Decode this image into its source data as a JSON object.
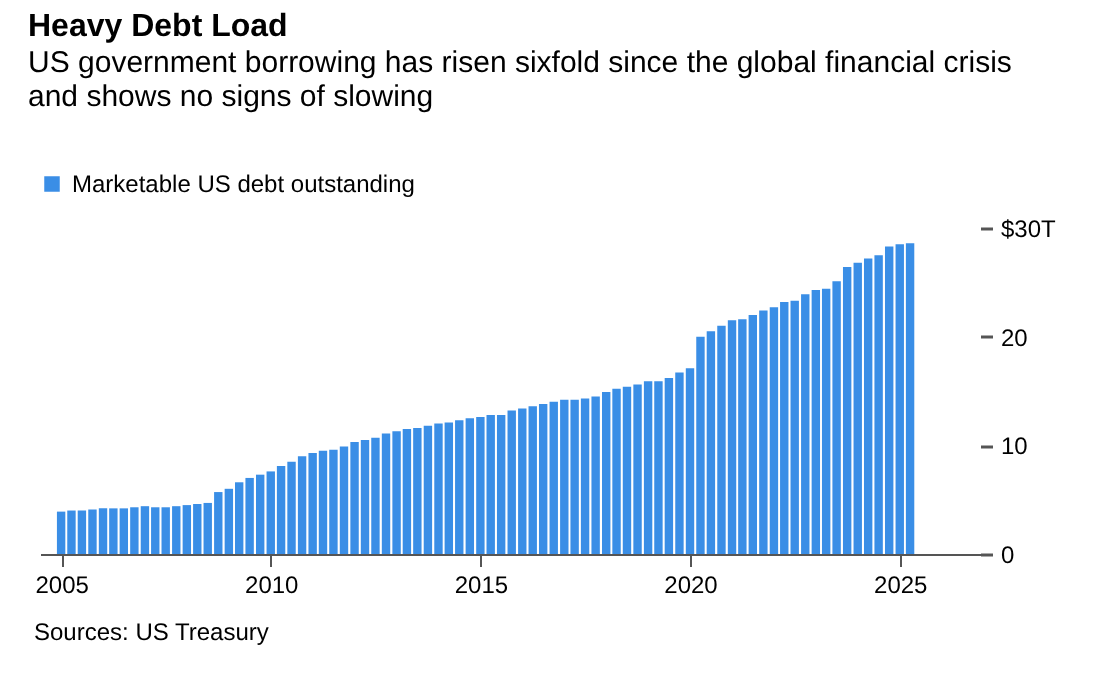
{
  "chart_data": {
    "type": "bar",
    "title": "Heavy Debt Load",
    "subtitle": "US government borrowing has risen sixfold since the global financial crisis\nand shows no signs of slowing",
    "annotations": [
      "Sources: US Treasury"
    ],
    "x": [
      "2005-01",
      "2005-04",
      "2005-07",
      "2005-10",
      "2006-01",
      "2006-04",
      "2006-07",
      "2006-10",
      "2007-01",
      "2007-04",
      "2007-07",
      "2007-10",
      "2008-01",
      "2008-04",
      "2008-07",
      "2008-10",
      "2009-01",
      "2009-04",
      "2009-07",
      "2009-10",
      "2010-01",
      "2010-04",
      "2010-07",
      "2010-10",
      "2011-01",
      "2011-04",
      "2011-07",
      "2011-10",
      "2012-01",
      "2012-04",
      "2012-07",
      "2012-10",
      "2013-01",
      "2013-04",
      "2013-07",
      "2013-10",
      "2014-01",
      "2014-04",
      "2014-07",
      "2014-10",
      "2015-01",
      "2015-04",
      "2015-07",
      "2015-10",
      "2016-01",
      "2016-04",
      "2016-07",
      "2016-10",
      "2017-01",
      "2017-04",
      "2017-07",
      "2017-10",
      "2018-01",
      "2018-04",
      "2018-07",
      "2018-10",
      "2019-01",
      "2019-04",
      "2019-07",
      "2019-10",
      "2020-01",
      "2020-04",
      "2020-07",
      "2020-10",
      "2021-01",
      "2021-04",
      "2021-07",
      "2021-10",
      "2022-01",
      "2022-04",
      "2022-07",
      "2022-10",
      "2023-01",
      "2023-04",
      "2023-07",
      "2023-10",
      "2024-01",
      "2024-04",
      "2024-07",
      "2024-10",
      "2025-01",
      "2025-04"
    ],
    "series": [
      {
        "name": "Marketable US debt outstanding",
        "color": "#3a8ee6",
        "values": [
          3.9,
          4.0,
          4.0,
          4.1,
          4.2,
          4.2,
          4.2,
          4.3,
          4.4,
          4.3,
          4.3,
          4.4,
          4.5,
          4.6,
          4.7,
          5.7,
          6.0,
          6.6,
          7.0,
          7.3,
          7.6,
          8.1,
          8.5,
          9.0,
          9.3,
          9.5,
          9.6,
          9.9,
          10.3,
          10.5,
          10.7,
          11.1,
          11.3,
          11.5,
          11.6,
          11.8,
          12.0,
          12.1,
          12.3,
          12.5,
          12.6,
          12.8,
          12.8,
          13.2,
          13.4,
          13.6,
          13.8,
          14.0,
          14.2,
          14.2,
          14.3,
          14.5,
          14.9,
          15.2,
          15.4,
          15.6,
          15.9,
          15.9,
          16.2,
          16.7,
          17.1,
          20.0,
          20.5,
          21.0,
          21.5,
          21.6,
          22.0,
          22.4,
          22.7,
          23.2,
          23.3,
          23.9,
          24.3,
          24.4,
          25.1,
          26.4,
          26.8,
          27.2,
          27.5,
          28.3,
          28.5,
          28.6
        ]
      }
    ],
    "xlim": [
      "2004-07",
      "2026-12"
    ],
    "xticks": [
      "2005",
      "2010",
      "2015",
      "2020",
      "2025"
    ],
    "ylim": [
      0,
      30
    ],
    "yticks": [
      0,
      10,
      20,
      {
        "value": 30,
        "label": "$30T"
      }
    ],
    "legend": "top left",
    "grid": false
  }
}
